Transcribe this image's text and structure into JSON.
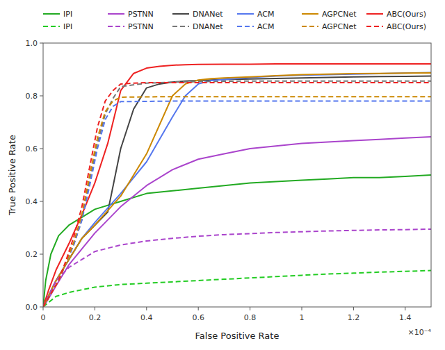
{
  "chart_data": {
    "type": "line",
    "xlabel": "False Positive Rate",
    "ylabel": "True Positive Rate",
    "annotations": [
      "×10⁻⁴"
    ],
    "xlim": [
      0,
      1.5
    ],
    "ylim": [
      0,
      1.0
    ],
    "xticks": [
      0,
      0.2,
      0.4,
      0.6,
      0.8,
      1,
      1.2,
      1.4
    ],
    "yticks": [
      {
        "value": 0.0,
        "label": "0.0"
      },
      0.2,
      0.4,
      0.6,
      0.8,
      {
        "value": 1.0,
        "label": "1.0"
      }
    ],
    "grid": false,
    "legend": "top",
    "series": [
      {
        "name": "IPI",
        "color": "#22aa22",
        "line_style": "solid",
        "x": [
          0,
          0.01,
          0.03,
          0.06,
          0.1,
          0.15,
          0.2,
          0.3,
          0.4,
          0.5,
          0.6,
          0.7,
          0.8,
          0.9,
          1.0,
          1.1,
          1.2,
          1.3,
          1.4,
          1.5
        ],
        "values": [
          0.0,
          0.1,
          0.2,
          0.27,
          0.31,
          0.34,
          0.37,
          0.4,
          0.43,
          0.44,
          0.45,
          0.46,
          0.47,
          0.475,
          0.48,
          0.485,
          0.49,
          0.49,
          0.495,
          0.5
        ]
      },
      {
        "name": "PSTNN",
        "color": "#aa44cc",
        "line_style": "solid",
        "x": [
          0,
          0.02,
          0.05,
          0.1,
          0.15,
          0.2,
          0.3,
          0.4,
          0.5,
          0.6,
          0.7,
          0.8,
          0.9,
          1.0,
          1.1,
          1.2,
          1.3,
          1.4,
          1.5
        ],
        "values": [
          0.0,
          0.03,
          0.08,
          0.16,
          0.22,
          0.28,
          0.38,
          0.46,
          0.52,
          0.56,
          0.58,
          0.6,
          0.61,
          0.62,
          0.625,
          0.63,
          0.635,
          0.64,
          0.645
        ]
      },
      {
        "name": "DNANet",
        "color": "#444444",
        "line_style": "solid",
        "x": [
          0,
          0.02,
          0.05,
          0.1,
          0.15,
          0.2,
          0.25,
          0.3,
          0.35,
          0.4,
          0.45,
          0.5,
          0.55,
          0.6,
          0.65,
          0.7,
          0.8,
          0.9,
          1.0,
          1.1,
          1.2,
          1.3,
          1.4,
          1.5
        ],
        "values": [
          0.0,
          0.04,
          0.1,
          0.18,
          0.26,
          0.31,
          0.36,
          0.6,
          0.75,
          0.83,
          0.845,
          0.852,
          0.856,
          0.858,
          0.86,
          0.862,
          0.864,
          0.866,
          0.868,
          0.87,
          0.872,
          0.873,
          0.874,
          0.875
        ]
      },
      {
        "name": "ACM",
        "color": "#5577ee",
        "line_style": "solid",
        "x": [
          0,
          0.02,
          0.05,
          0.1,
          0.15,
          0.2,
          0.3,
          0.4,
          0.5,
          0.55,
          0.6,
          0.65,
          0.7,
          0.75,
          0.8,
          0.9,
          1.0,
          1.1,
          1.2,
          1.3,
          1.4,
          1.5
        ],
        "values": [
          0.0,
          0.04,
          0.1,
          0.18,
          0.26,
          0.32,
          0.43,
          0.55,
          0.72,
          0.8,
          0.845,
          0.858,
          0.862,
          0.866,
          0.87,
          0.875,
          0.878,
          0.88,
          0.882,
          0.884,
          0.886,
          0.888
        ]
      },
      {
        "name": "AGPCNet",
        "color": "#cc8800",
        "line_style": "solid",
        "x": [
          0,
          0.02,
          0.05,
          0.1,
          0.15,
          0.2,
          0.3,
          0.4,
          0.5,
          0.55,
          0.6,
          0.65,
          0.7,
          0.8,
          0.9,
          1.0,
          1.1,
          1.2,
          1.3,
          1.4,
          1.5
        ],
        "values": [
          0.0,
          0.04,
          0.1,
          0.18,
          0.26,
          0.31,
          0.42,
          0.58,
          0.8,
          0.845,
          0.86,
          0.865,
          0.868,
          0.872,
          0.876,
          0.88,
          0.882,
          0.884,
          0.885,
          0.886,
          0.887
        ]
      },
      {
        "name": "ABC(Ours)",
        "color": "#ee2222",
        "line_style": "solid",
        "x": [
          0,
          0.02,
          0.05,
          0.1,
          0.15,
          0.2,
          0.25,
          0.3,
          0.35,
          0.4,
          0.45,
          0.5,
          0.55,
          0.6,
          0.7,
          0.8,
          0.9,
          1.0,
          1.1,
          1.2,
          1.3,
          1.4,
          1.5
        ],
        "values": [
          0.0,
          0.06,
          0.14,
          0.24,
          0.35,
          0.47,
          0.62,
          0.82,
          0.885,
          0.905,
          0.912,
          0.916,
          0.918,
          0.919,
          0.92,
          0.92,
          0.921,
          0.921,
          0.921,
          0.921,
          0.921,
          0.921,
          0.921
        ]
      },
      {
        "name": "IPI",
        "color": "#22cc22",
        "line_style": "dashed",
        "x": [
          0,
          0.05,
          0.1,
          0.15,
          0.2,
          0.3,
          0.4,
          0.5,
          0.6,
          0.7,
          0.8,
          0.9,
          1.0,
          1.1,
          1.2,
          1.3,
          1.4,
          1.5
        ],
        "values": [
          0.0,
          0.04,
          0.055,
          0.065,
          0.075,
          0.085,
          0.09,
          0.095,
          0.1,
          0.105,
          0.11,
          0.115,
          0.12,
          0.125,
          0.128,
          0.132,
          0.135,
          0.138
        ]
      },
      {
        "name": "PSTNN",
        "color": "#aa44cc",
        "line_style": "dashed",
        "x": [
          0,
          0.05,
          0.1,
          0.15,
          0.2,
          0.3,
          0.4,
          0.5,
          0.6,
          0.7,
          0.8,
          0.9,
          1.0,
          1.1,
          1.2,
          1.3,
          1.4,
          1.5
        ],
        "values": [
          0.0,
          0.1,
          0.15,
          0.18,
          0.21,
          0.235,
          0.25,
          0.26,
          0.268,
          0.274,
          0.278,
          0.282,
          0.285,
          0.288,
          0.29,
          0.292,
          0.293,
          0.295
        ]
      },
      {
        "name": "DNANet",
        "color": "#777777",
        "line_style": "dashed",
        "x": [
          0,
          0.03,
          0.06,
          0.09,
          0.12,
          0.15,
          0.18,
          0.21,
          0.24,
          0.27,
          0.3,
          0.4,
          0.5,
          0.6,
          0.7,
          0.8,
          0.9,
          1.0,
          1.1,
          1.2,
          1.3,
          1.4,
          1.5
        ],
        "values": [
          0.0,
          0.05,
          0.1,
          0.17,
          0.24,
          0.33,
          0.48,
          0.62,
          0.73,
          0.79,
          0.835,
          0.848,
          0.852,
          0.854,
          0.855,
          0.856,
          0.856,
          0.856,
          0.856,
          0.856,
          0.856,
          0.856,
          0.856
        ]
      },
      {
        "name": "ACM",
        "color": "#5577ee",
        "line_style": "dashed",
        "x": [
          0,
          0.03,
          0.06,
          0.09,
          0.12,
          0.15,
          0.18,
          0.21,
          0.24,
          0.27,
          0.3,
          0.4,
          0.5,
          0.6,
          0.7,
          0.8,
          0.9,
          1.0,
          1.1,
          1.2,
          1.3,
          1.4,
          1.5
        ],
        "values": [
          0.0,
          0.05,
          0.1,
          0.17,
          0.24,
          0.33,
          0.46,
          0.6,
          0.71,
          0.76,
          0.778,
          0.779,
          0.78,
          0.78,
          0.78,
          0.78,
          0.78,
          0.78,
          0.78,
          0.78,
          0.78,
          0.78,
          0.78
        ]
      },
      {
        "name": "AGPCNet",
        "color": "#cc8800",
        "line_style": "dashed",
        "x": [
          0,
          0.03,
          0.06,
          0.09,
          0.12,
          0.15,
          0.18,
          0.21,
          0.24,
          0.27,
          0.3,
          0.4,
          0.5,
          0.6,
          0.7,
          0.8,
          0.9,
          1.0,
          1.1,
          1.2,
          1.3,
          1.4,
          1.5
        ],
        "values": [
          0.0,
          0.05,
          0.1,
          0.17,
          0.25,
          0.35,
          0.5,
          0.64,
          0.74,
          0.78,
          0.795,
          0.796,
          0.797,
          0.797,
          0.797,
          0.797,
          0.797,
          0.797,
          0.797,
          0.797,
          0.797,
          0.797,
          0.797
        ]
      },
      {
        "name": "ABC(Ours)",
        "color": "#ee2222",
        "line_style": "dashed",
        "x": [
          0,
          0.03,
          0.06,
          0.09,
          0.12,
          0.15,
          0.18,
          0.21,
          0.24,
          0.27,
          0.3,
          0.35,
          0.4,
          0.5,
          0.6,
          0.7,
          0.8,
          0.9,
          1.0,
          1.1,
          1.2,
          1.3,
          1.4,
          1.5
        ],
        "values": [
          0.0,
          0.05,
          0.1,
          0.18,
          0.27,
          0.38,
          0.53,
          0.68,
          0.78,
          0.82,
          0.845,
          0.848,
          0.85,
          0.85,
          0.85,
          0.85,
          0.85,
          0.85,
          0.85,
          0.85,
          0.85,
          0.85,
          0.85,
          0.85
        ]
      }
    ]
  }
}
